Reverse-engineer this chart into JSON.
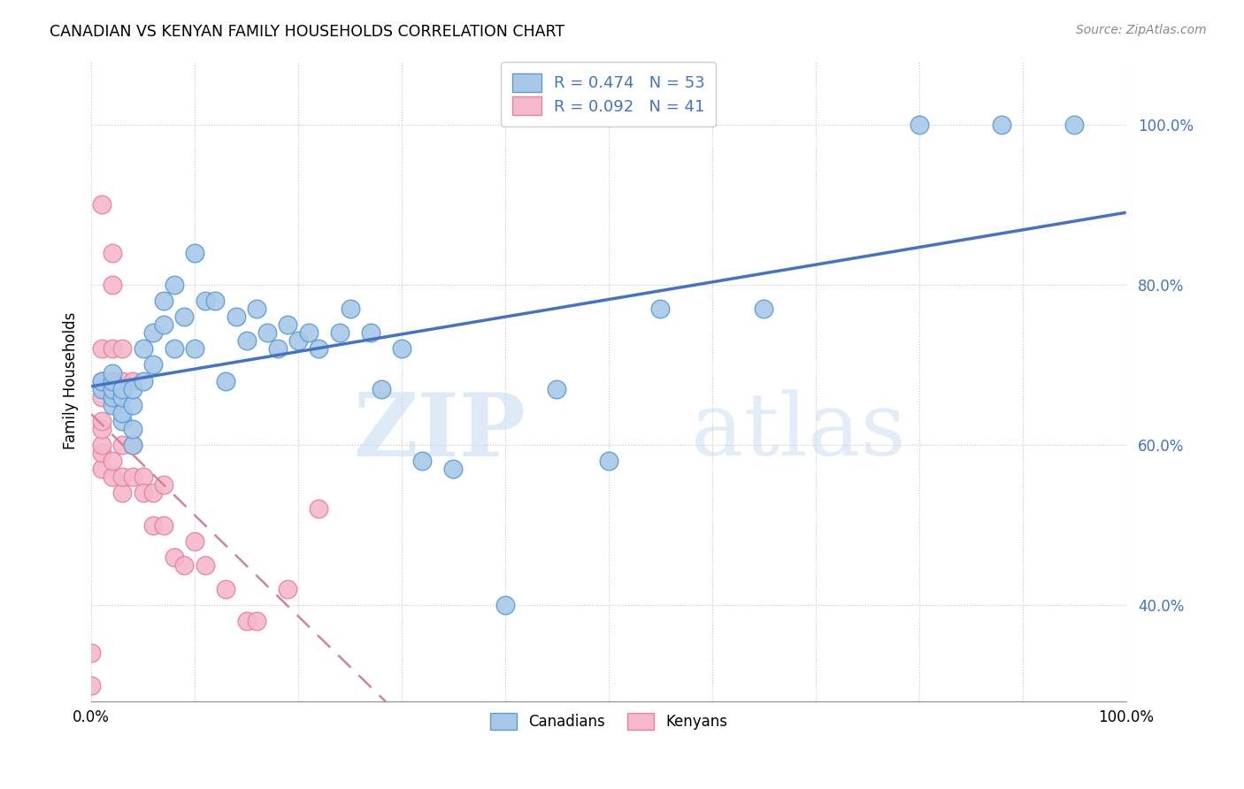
{
  "title": "CANADIAN VS KENYAN FAMILY HOUSEHOLDS CORRELATION CHART",
  "source": "Source: ZipAtlas.com",
  "ylabel": "Family Households",
  "xlim": [
    0.0,
    1.0
  ],
  "ylim": [
    0.28,
    1.08
  ],
  "yticks": [
    0.4,
    0.6,
    0.8,
    1.0
  ],
  "ytick_labels": [
    "40.0%",
    "60.0%",
    "80.0%",
    "100.0%"
  ],
  "xticks": [
    0.0,
    0.1,
    0.2,
    0.3,
    0.4,
    0.5,
    0.6,
    0.7,
    0.8,
    0.9,
    1.0
  ],
  "canadian_color": "#a8c8e8",
  "canadian_edge_color": "#5b9bd5",
  "kenyan_color": "#f4b8cc",
  "kenyan_edge_color": "#e8829a",
  "canadian_line_color": "#4472c4",
  "kenyan_line_color": "#d4829a",
  "r_canadian": 0.474,
  "n_canadian": 53,
  "r_kenyan": 0.092,
  "n_kenyan": 41,
  "watermark_zip": "ZIP",
  "watermark_atlas": "atlas",
  "legend_r_color": "#4472c4",
  "legend_n_color": "#4472c4",
  "canadian_x": [
    0.01,
    0.01,
    0.02,
    0.02,
    0.02,
    0.02,
    0.02,
    0.03,
    0.03,
    0.03,
    0.03,
    0.04,
    0.04,
    0.04,
    0.04,
    0.05,
    0.05,
    0.06,
    0.06,
    0.07,
    0.07,
    0.08,
    0.08,
    0.09,
    0.1,
    0.1,
    0.11,
    0.12,
    0.13,
    0.14,
    0.15,
    0.16,
    0.17,
    0.18,
    0.19,
    0.2,
    0.21,
    0.22,
    0.24,
    0.25,
    0.27,
    0.28,
    0.3,
    0.32,
    0.35,
    0.4,
    0.45,
    0.5,
    0.55,
    0.65,
    0.8,
    0.88,
    0.95
  ],
  "canadian_y": [
    0.67,
    0.68,
    0.65,
    0.66,
    0.67,
    0.68,
    0.69,
    0.63,
    0.64,
    0.66,
    0.67,
    0.6,
    0.62,
    0.65,
    0.67,
    0.68,
    0.72,
    0.7,
    0.74,
    0.75,
    0.78,
    0.72,
    0.8,
    0.76,
    0.72,
    0.84,
    0.78,
    0.78,
    0.68,
    0.76,
    0.73,
    0.77,
    0.74,
    0.72,
    0.75,
    0.73,
    0.74,
    0.72,
    0.74,
    0.77,
    0.74,
    0.67,
    0.72,
    0.58,
    0.57,
    0.4,
    0.67,
    0.58,
    0.77,
    0.77,
    1.0,
    1.0,
    1.0
  ],
  "kenyan_x": [
    0.0,
    0.0,
    0.01,
    0.01,
    0.01,
    0.01,
    0.01,
    0.01,
    0.01,
    0.01,
    0.01,
    0.02,
    0.02,
    0.02,
    0.02,
    0.02,
    0.02,
    0.02,
    0.03,
    0.03,
    0.03,
    0.03,
    0.03,
    0.04,
    0.04,
    0.04,
    0.05,
    0.05,
    0.06,
    0.06,
    0.07,
    0.07,
    0.08,
    0.09,
    0.1,
    0.11,
    0.13,
    0.15,
    0.16,
    0.19,
    0.22
  ],
  "kenyan_y": [
    0.3,
    0.34,
    0.57,
    0.59,
    0.6,
    0.62,
    0.63,
    0.66,
    0.68,
    0.72,
    0.9,
    0.56,
    0.58,
    0.66,
    0.68,
    0.72,
    0.8,
    0.84,
    0.54,
    0.56,
    0.6,
    0.68,
    0.72,
    0.56,
    0.6,
    0.68,
    0.56,
    0.54,
    0.5,
    0.54,
    0.55,
    0.5,
    0.46,
    0.45,
    0.48,
    0.45,
    0.42,
    0.38,
    0.38,
    0.42,
    0.52
  ]
}
